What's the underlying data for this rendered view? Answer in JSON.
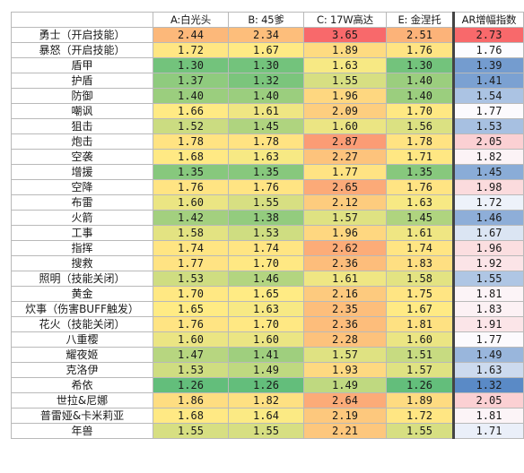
{
  "chart_data": {
    "type": "table",
    "columns": [
      "",
      "A:白光头",
      "B: 45爹",
      "C: 17W高达",
      "E: 金涅托",
      "AR增幅指数"
    ],
    "rows": [
      {
        "name": "勇士（开启技能）",
        "values": [
          2.44,
          2.34,
          3.65,
          2.51,
          2.73
        ]
      },
      {
        "name": "暴怒（开启技能）",
        "values": [
          1.72,
          1.67,
          1.89,
          1.76,
          1.76
        ]
      },
      {
        "name": "盾甲",
        "values": [
          1.3,
          1.3,
          1.63,
          1.3,
          1.39
        ]
      },
      {
        "name": "护盾",
        "values": [
          1.37,
          1.32,
          1.55,
          1.4,
          1.41
        ]
      },
      {
        "name": "防御",
        "values": [
          1.4,
          1.4,
          1.96,
          1.4,
          1.54
        ]
      },
      {
        "name": "嘲讽",
        "values": [
          1.66,
          1.61,
          2.09,
          1.7,
          1.77
        ]
      },
      {
        "name": "狙击",
        "values": [
          1.52,
          1.45,
          1.6,
          1.56,
          1.53
        ]
      },
      {
        "name": "炮击",
        "values": [
          1.78,
          1.78,
          2.87,
          1.78,
          2.05
        ]
      },
      {
        "name": "空袭",
        "values": [
          1.68,
          1.63,
          2.27,
          1.71,
          1.82
        ]
      },
      {
        "name": "增援",
        "values": [
          1.35,
          1.35,
          1.77,
          1.35,
          1.45
        ]
      },
      {
        "name": "空降",
        "values": [
          1.76,
          1.76,
          2.65,
          1.76,
          1.98
        ]
      },
      {
        "name": "布雷",
        "values": [
          1.6,
          1.55,
          2.12,
          1.63,
          1.72
        ]
      },
      {
        "name": "火箭",
        "values": [
          1.42,
          1.38,
          1.57,
          1.45,
          1.46
        ]
      },
      {
        "name": "工事",
        "values": [
          1.58,
          1.53,
          1.96,
          1.61,
          1.67
        ]
      },
      {
        "name": "指挥",
        "values": [
          1.74,
          1.74,
          2.62,
          1.74,
          1.96
        ]
      },
      {
        "name": "搜救",
        "values": [
          1.77,
          1.7,
          2.36,
          1.83,
          1.92
        ]
      },
      {
        "name": "照明（技能关闭）",
        "values": [
          1.53,
          1.46,
          1.61,
          1.58,
          1.55
        ]
      },
      {
        "name": "黄金",
        "values": [
          1.7,
          1.65,
          2.16,
          1.75,
          1.81
        ]
      },
      {
        "name": "炊事（伤害BUFF触发）",
        "values": [
          1.65,
          1.63,
          2.35,
          1.67,
          1.83
        ]
      },
      {
        "name": "花火（技能关闭）",
        "values": [
          1.76,
          1.7,
          2.36,
          1.81,
          1.91
        ]
      },
      {
        "name": "八重樱",
        "values": [
          1.6,
          1.6,
          2.28,
          1.6,
          1.77
        ]
      },
      {
        "name": "耀夜姬",
        "values": [
          1.47,
          1.41,
          1.57,
          1.51,
          1.49
        ]
      },
      {
        "name": "克洛伊",
        "values": [
          1.53,
          1.49,
          1.93,
          1.57,
          1.63
        ]
      },
      {
        "name": "希依",
        "values": [
          1.26,
          1.26,
          1.49,
          1.26,
          1.32
        ]
      },
      {
        "name": "世拉&尼娜",
        "values": [
          1.86,
          1.82,
          2.64,
          1.89,
          2.05
        ]
      },
      {
        "name": "普雷娅&卡米莉亚",
        "values": [
          1.68,
          1.64,
          2.19,
          1.72,
          1.81
        ]
      },
      {
        "name": "年兽",
        "values": [
          1.55,
          1.55,
          2.21,
          1.55,
          1.71
        ]
      }
    ],
    "color_scale": {
      "main": {
        "low": "#63be7b",
        "mid": "#ffeb84",
        "high": "#f8696b"
      },
      "index": {
        "low": "#5a8ac6",
        "mid": "#fcfcff",
        "high": "#f8696b"
      }
    }
  }
}
